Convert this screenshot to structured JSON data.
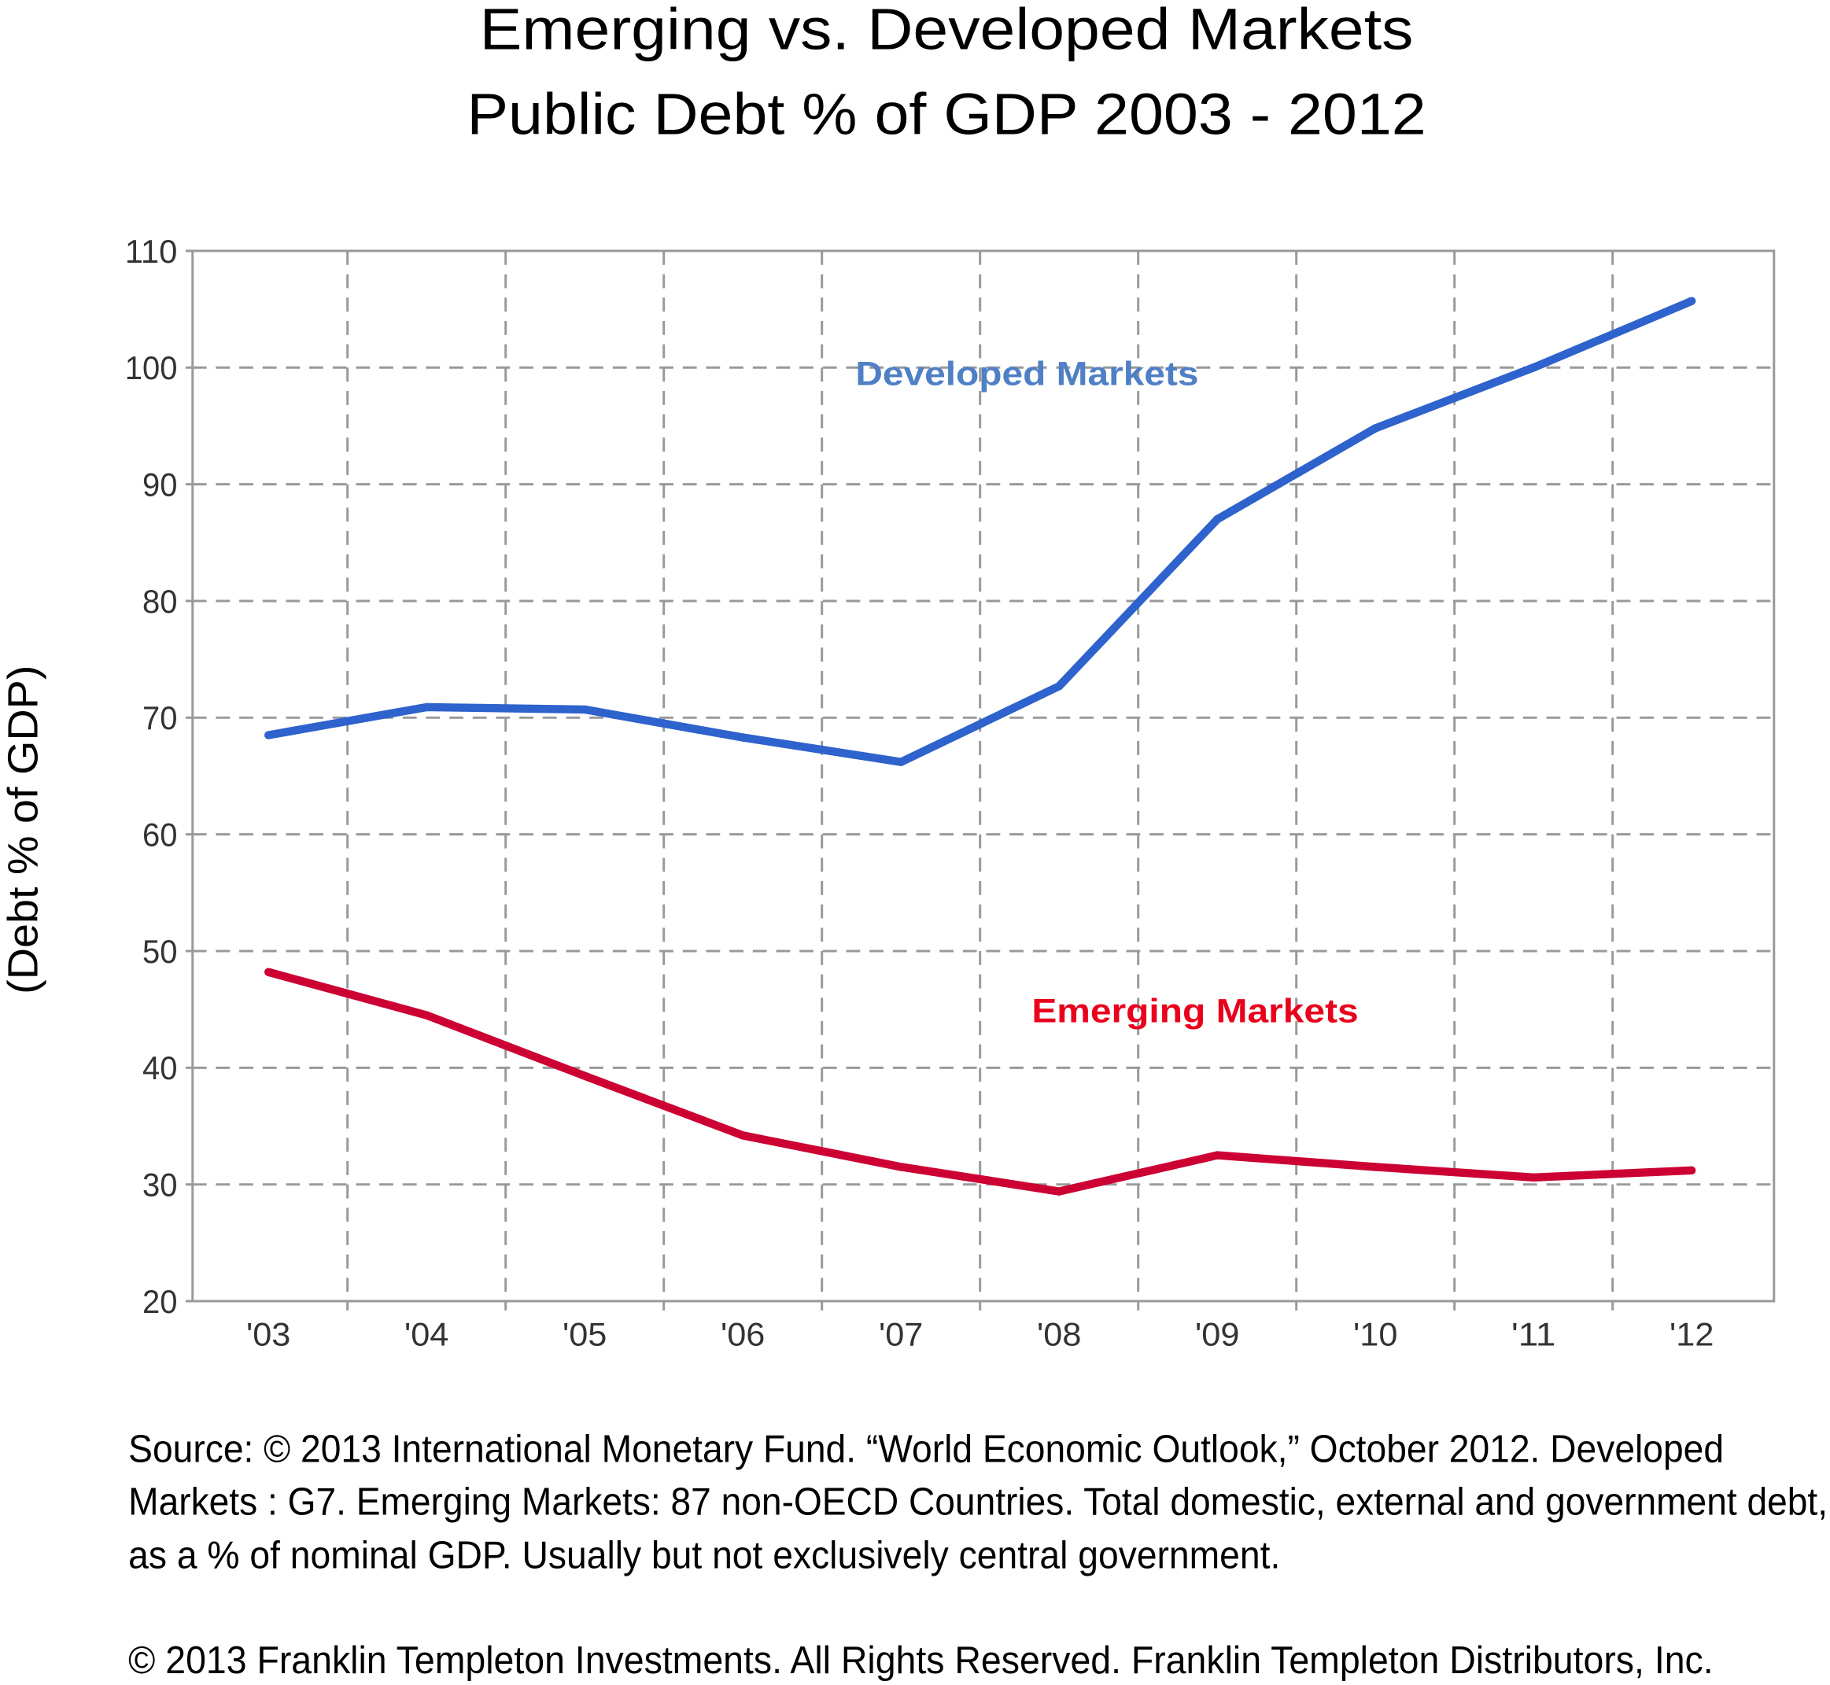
{
  "chart_data": {
    "type": "line",
    "title": "Emerging vs. Developed Markets",
    "subtitle": "Public Debt % of GDP 2003 - 2012",
    "xlabel": "",
    "ylabel": "(Debt % of GDP)",
    "categories": [
      "'03",
      "'04",
      "'05",
      "'06",
      "'07",
      "'08",
      "'09",
      "'10",
      "'11",
      "'12"
    ],
    "yticks": [
      "20",
      "30",
      "40",
      "50",
      "60",
      "70",
      "80",
      "90",
      "100",
      "110"
    ],
    "ylim": [
      20,
      110
    ],
    "grid": true,
    "series": [
      {
        "name": "Developed Markets",
        "color": "#2e62cc",
        "label_color": "#4f7fc4",
        "values": [
          68.5,
          70.9,
          70.7,
          68.3,
          66.2,
          72.7,
          87.0,
          94.8,
          100.0,
          105.7
        ]
      },
      {
        "name": "Emerging Markets",
        "color": "#cc0033",
        "label_color": "#e8001c",
        "values": [
          48.2,
          44.5,
          39.3,
          34.2,
          31.5,
          29.4,
          32.5,
          31.5,
          30.6,
          31.2
        ]
      }
    ]
  },
  "footer": {
    "source_lines": [
      "Source: © 2013 International Monetary Fund. “World Economic Outlook,” October 2012. Developed",
      "Markets : G7. Emerging Markets: 87 non-OECD Countries. Total domestic, external and government debt,",
      "as a % of nominal GDP. Usually but not exclusively central government."
    ],
    "copyright": "© 2013 Franklin Templeton Investments. All Rights Reserved.  Franklin Templeton Distributors, Inc."
  }
}
